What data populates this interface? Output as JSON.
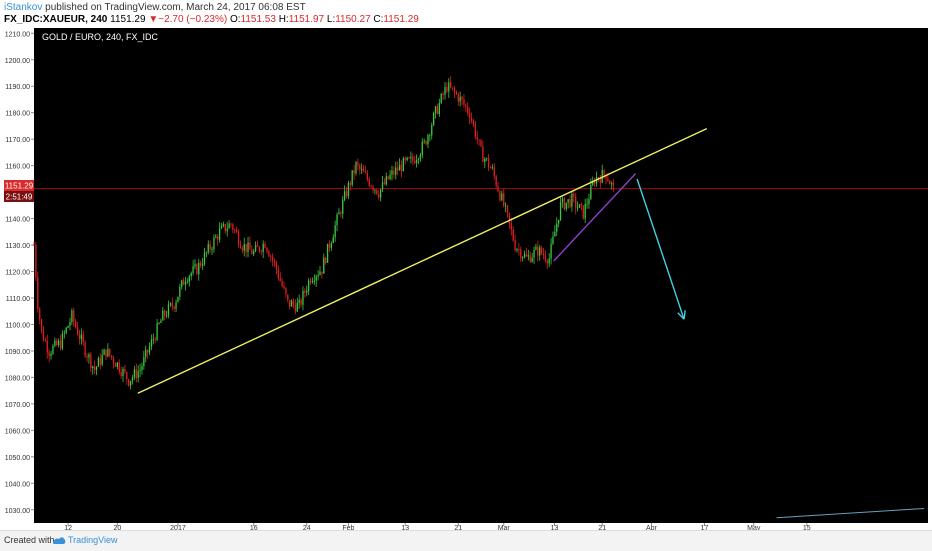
{
  "header": {
    "author": "iStankov",
    "published_text": "published on TradingView.com, March 24, 2017 06:08 EST",
    "symbol": "FX_IDC:XAUEUR, 240",
    "last_price": "1151.29",
    "change_arrow": "▼",
    "change": "−2.70 (−0.23%)",
    "ohlc": [
      {
        "label": "O:",
        "value": "1151.53"
      },
      {
        "label": "H:",
        "value": "1151.97"
      },
      {
        "label": "L:",
        "value": "1150.27"
      },
      {
        "label": "C:",
        "value": "1151.29"
      }
    ]
  },
  "footer": {
    "created_with": "Created with",
    "brand": "TradingView"
  },
  "colors": {
    "background": "#000000",
    "up_candle": "#3cc73c",
    "down_candle": "#e0201f",
    "trendline": "#f0f060",
    "wedge_line": "#9040d0",
    "projection_arrow": "#40d0e0",
    "price_line": "#b01010",
    "axis_text": "#333333"
  },
  "chart_data": {
    "type": "candlestick",
    "title": "GOLD / EURO, 240, FX_IDC",
    "y_ticks": [
      "1210.00",
      "1200.00",
      "1190.00",
      "1180.00",
      "1170.00",
      "1160.00",
      "1150.00",
      "1140.00",
      "1130.00",
      "1120.00",
      "1110.00",
      "1100.00",
      "1090.00",
      "1080.00",
      "1070.00",
      "1060.00",
      "1050.00",
      "1040.00",
      "1030.00"
    ],
    "ylim": [
      1025,
      1212
    ],
    "x_ticks": [
      "12",
      "20",
      "2017",
      "16",
      "24",
      "Feb",
      "13",
      "21",
      "Mar",
      "13",
      "21",
      "Apr",
      "17",
      "May",
      "15"
    ],
    "current_price_label": "1151.29",
    "countdown_label": "2:51:49",
    "current_price": 1151.29,
    "close_path": [
      {
        "x": 0.0,
        "y": 1130
      },
      {
        "x": 0.5,
        "y": 1108
      },
      {
        "x": 1.0,
        "y": 1097
      },
      {
        "x": 2.0,
        "y": 1090
      },
      {
        "x": 3.5,
        "y": 1093
      },
      {
        "x": 5.0,
        "y": 1103
      },
      {
        "x": 6.5,
        "y": 1092
      },
      {
        "x": 8.0,
        "y": 1083
      },
      {
        "x": 9.5,
        "y": 1090
      },
      {
        "x": 11.0,
        "y": 1085
      },
      {
        "x": 12.5,
        "y": 1079
      },
      {
        "x": 14.0,
        "y": 1083
      },
      {
        "x": 15.5,
        "y": 1093
      },
      {
        "x": 17.0,
        "y": 1103
      },
      {
        "x": 18.5,
        "y": 1108
      },
      {
        "x": 20.0,
        "y": 1118
      },
      {
        "x": 21.5,
        "y": 1121
      },
      {
        "x": 23.0,
        "y": 1128
      },
      {
        "x": 24.5,
        "y": 1135
      },
      {
        "x": 26.0,
        "y": 1138
      },
      {
        "x": 27.5,
        "y": 1130
      },
      {
        "x": 29.0,
        "y": 1127
      },
      {
        "x": 30.5,
        "y": 1131
      },
      {
        "x": 32.0,
        "y": 1121
      },
      {
        "x": 33.5,
        "y": 1108
      },
      {
        "x": 35.0,
        "y": 1107
      },
      {
        "x": 36.5,
        "y": 1118
      },
      {
        "x": 38.0,
        "y": 1121
      },
      {
        "x": 39.5,
        "y": 1135
      },
      {
        "x": 41.0,
        "y": 1148
      },
      {
        "x": 42.5,
        "y": 1160
      },
      {
        "x": 44.0,
        "y": 1155
      },
      {
        "x": 45.5,
        "y": 1150
      },
      {
        "x": 47.0,
        "y": 1156
      },
      {
        "x": 48.5,
        "y": 1160
      },
      {
        "x": 50.0,
        "y": 1162
      },
      {
        "x": 51.5,
        "y": 1168
      },
      {
        "x": 53.0,
        "y": 1180
      },
      {
        "x": 54.5,
        "y": 1190
      },
      {
        "x": 56.0,
        "y": 1186
      },
      {
        "x": 57.5,
        "y": 1180
      },
      {
        "x": 59.0,
        "y": 1165
      },
      {
        "x": 60.5,
        "y": 1158
      },
      {
        "x": 62.0,
        "y": 1145
      },
      {
        "x": 63.5,
        "y": 1130
      },
      {
        "x": 65.0,
        "y": 1125
      },
      {
        "x": 66.5,
        "y": 1128
      },
      {
        "x": 68.0,
        "y": 1125
      },
      {
        "x": 69.5,
        "y": 1145
      },
      {
        "x": 71.0,
        "y": 1147
      },
      {
        "x": 72.5,
        "y": 1142
      },
      {
        "x": 74.0,
        "y": 1155
      },
      {
        "x": 75.5,
        "y": 1157
      },
      {
        "x": 76.5,
        "y": 1151
      }
    ],
    "x_total": 118,
    "tick_positions": [
      4.5,
      11.0,
      19.0,
      29.0,
      36.0,
      41.5,
      49.0,
      56.0,
      62.0,
      68.7,
      75.0,
      81.5,
      88.5,
      95.0,
      102.0
    ],
    "drawings": [
      {
        "name": "trendline",
        "x1": 13.7,
        "y1": 1074,
        "x2": 88.8,
        "y2": 1174
      },
      {
        "name": "wedge_line",
        "x1": 68.6,
        "y1": 1124,
        "x2": 79.4,
        "y2": 1157
      },
      {
        "name": "projection_line",
        "x1": 79.6,
        "y1": 1155,
        "x2": 85.8,
        "y2": 1102
      }
    ]
  }
}
